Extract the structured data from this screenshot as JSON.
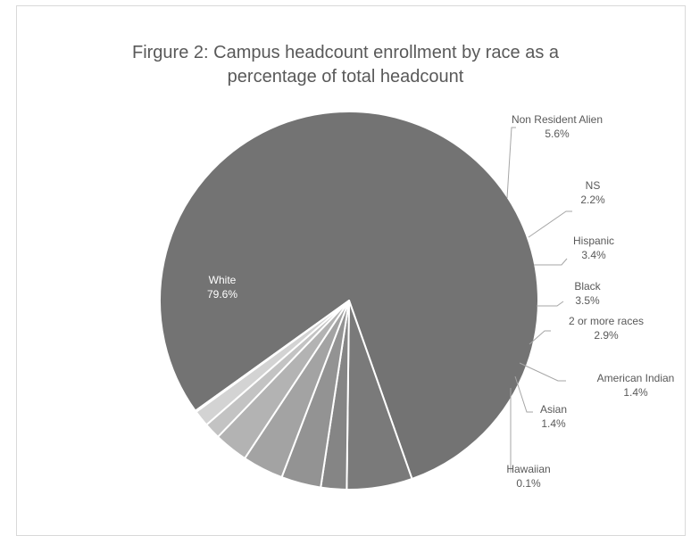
{
  "chart_data": {
    "type": "pie",
    "title_line1": "Firgure 2: Campus headcount enrollment by race as a",
    "title_line2": "percentage of total headcount",
    "slices": [
      {
        "name": "White",
        "value": 79.6,
        "label": "79.6%",
        "color": "#737373"
      },
      {
        "name": "Non Resident Alien",
        "value": 5.6,
        "label": "5.6%",
        "color": "#7a7a7a"
      },
      {
        "name": "NS",
        "value": 2.2,
        "label": "2.2%",
        "color": "#858585"
      },
      {
        "name": "Hispanic",
        "value": 3.4,
        "label": "3.4%",
        "color": "#939393"
      },
      {
        "name": "Black",
        "value": 3.5,
        "label": "3.5%",
        "color": "#a3a3a3"
      },
      {
        "name": "2 or more races",
        "value": 2.9,
        "label": "2.9%",
        "color": "#b3b3b3"
      },
      {
        "name": "American Indian",
        "value": 1.4,
        "label": "1.4%",
        "color": "#c3c3c3"
      },
      {
        "name": "Asian",
        "value": 1.4,
        "label": "1.4%",
        "color": "#d3d3d3"
      },
      {
        "name": "Hawaiian",
        "value": 0.1,
        "label": "0.1%",
        "color": "#e3e3e3"
      }
    ]
  }
}
